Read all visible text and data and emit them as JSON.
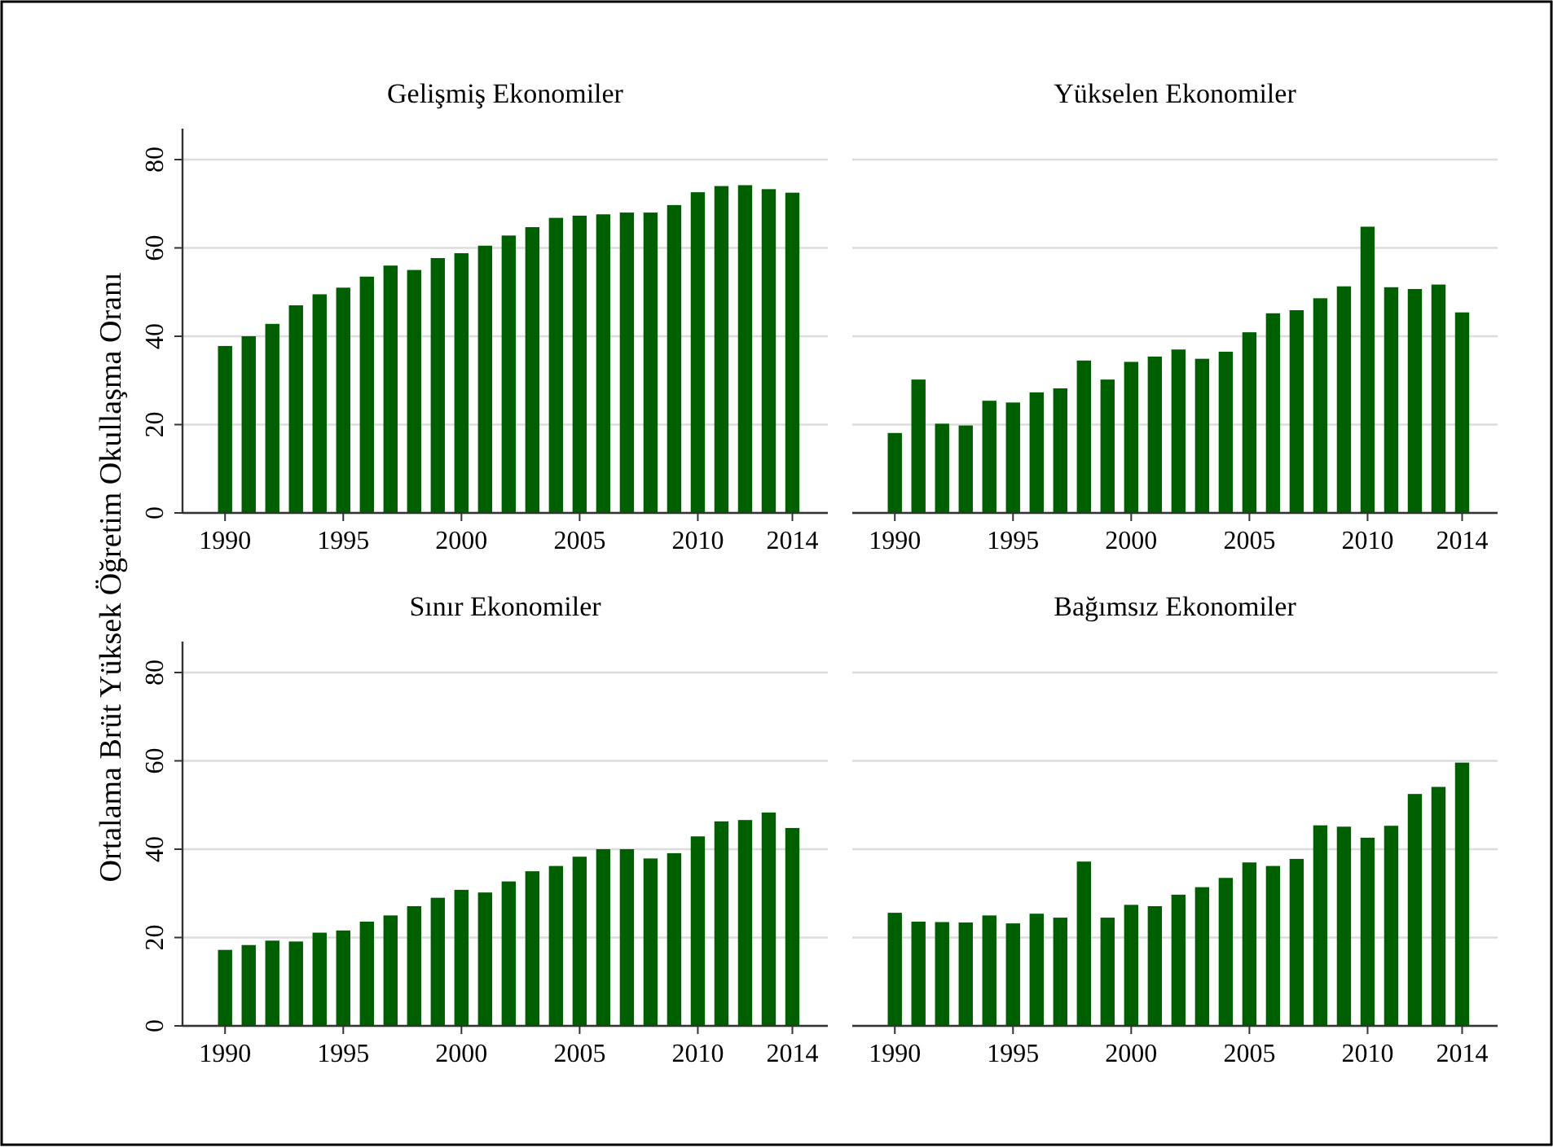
{
  "chart_data": [
    {
      "type": "bar",
      "title": "Gelişmiş Ekonomiler",
      "ylabel": "Ortalama Brüt Yüksek Öğretim Okullaşma Oranı",
      "x": [
        1990,
        1991,
        1992,
        1993,
        1994,
        1995,
        1996,
        1997,
        1998,
        1999,
        2000,
        2001,
        2002,
        2003,
        2004,
        2005,
        2006,
        2007,
        2008,
        2009,
        2010,
        2011,
        2012,
        2013,
        2014
      ],
      "values": [
        37.8,
        40,
        42.8,
        47,
        49.5,
        51,
        53.5,
        56,
        55,
        57.7,
        58.8,
        60.5,
        62.8,
        64.7,
        66.8,
        67.3,
        67.6,
        68,
        68,
        69.7,
        72.6,
        74,
        74.2,
        73.3,
        72.5
      ],
      "color": "#005f00",
      "xlim": [
        1988.2,
        2015.5
      ],
      "xticks": [
        1990,
        1995,
        2000,
        2005,
        2010,
        2014
      ],
      "ylim": [
        0,
        87
      ],
      "yticks": [
        0,
        20,
        40,
        60,
        80
      ],
      "grid": "y"
    },
    {
      "type": "bar",
      "title": "Yükselen Ekonomiler",
      "x": [
        1990,
        1991,
        1992,
        1993,
        1994,
        1995,
        1996,
        1997,
        1998,
        1999,
        2000,
        2001,
        2002,
        2003,
        2004,
        2005,
        2006,
        2007,
        2008,
        2009,
        2010,
        2011,
        2012,
        2013,
        2014
      ],
      "values": [
        18.1,
        30.2,
        20.2,
        19.8,
        25.4,
        25,
        27.3,
        28.2,
        34.5,
        30.2,
        34.2,
        35.4,
        37,
        34.9,
        36.5,
        40.9,
        45.2,
        45.9,
        48.6,
        51.3,
        64.8,
        51.1,
        50.7,
        51.7,
        45.4
      ],
      "color": "#005f00",
      "xlim": [
        1988.2,
        2015.5
      ],
      "xticks": [
        1990,
        1995,
        2000,
        2005,
        2010,
        2014
      ],
      "yticks": [
        0,
        20,
        40,
        60,
        80
      ],
      "grid": "y",
      "tick_labels": "x"
    },
    {
      "type": "bar",
      "title": "Sınır Ekonomiler",
      "x": [
        1990,
        1991,
        1992,
        1993,
        1994,
        1995,
        1996,
        1997,
        1998,
        1999,
        2000,
        2001,
        2002,
        2003,
        2004,
        2005,
        2006,
        2007,
        2008,
        2009,
        2010,
        2011,
        2012,
        2013,
        2014
      ],
      "values": [
        17.2,
        18.3,
        19.3,
        19.1,
        21.1,
        21.6,
        23.6,
        25,
        27.1,
        29,
        30.8,
        30.2,
        32.7,
        35,
        36.2,
        38.3,
        40,
        40,
        37.9,
        39.1,
        42.9,
        46.3,
        46.6,
        48.3,
        44.8
      ],
      "color": "#005f00",
      "xlim": [
        1988.2,
        2015.5
      ],
      "xticks": [
        1990,
        1995,
        2000,
        2005,
        2010,
        2014
      ],
      "ylim": [
        0,
        87
      ],
      "yticks": [
        0,
        20,
        40,
        60,
        80
      ],
      "grid": "y"
    },
    {
      "type": "bar",
      "title": "Bağımsız Ekonomiler",
      "x": [
        1990,
        1991,
        1992,
        1993,
        1994,
        1995,
        1996,
        1997,
        1998,
        1999,
        2000,
        2001,
        2002,
        2003,
        2004,
        2005,
        2006,
        2007,
        2008,
        2009,
        2010,
        2011,
        2012,
        2013,
        2014
      ],
      "values": [
        25.6,
        23.6,
        23.5,
        23.4,
        25,
        23.2,
        25.4,
        24.5,
        37.2,
        24.5,
        27.4,
        27.1,
        29.7,
        31.4,
        33.5,
        37,
        36.2,
        37.8,
        45.4,
        45.1,
        42.6,
        45.3,
        52.5,
        54.1,
        59.6
      ],
      "color": "#005f00",
      "xlim": [
        1988.2,
        2015.5
      ],
      "xticks": [
        1990,
        1995,
        2000,
        2005,
        2010,
        2014
      ],
      "yticks": [
        0,
        20,
        40,
        60,
        80
      ],
      "grid": "y",
      "tick_labels": "x"
    }
  ]
}
